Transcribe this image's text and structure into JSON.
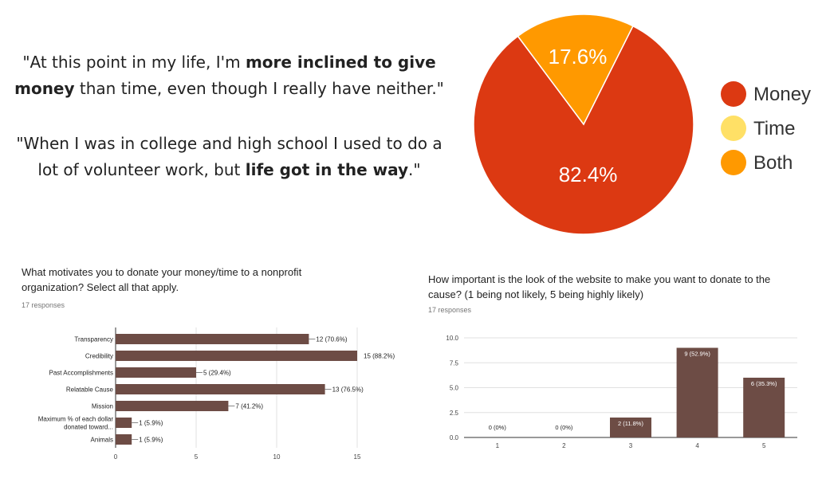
{
  "quotes": [
    {
      "parts": [
        {
          "text": "\"At this point in my life, I'm ",
          "bold": false
        },
        {
          "text": "more inclined to give money",
          "bold": true
        },
        {
          "text": " than time, even though I really have neither.\"",
          "bold": false
        }
      ]
    },
    {
      "parts": [
        {
          "text": "\"When I was in college and high school I used to do a lot of volunteer work, but ",
          "bold": false
        },
        {
          "text": "life got in the way",
          "bold": true
        },
        {
          "text": ".\"",
          "bold": false
        }
      ]
    }
  ],
  "chart_data": [
    {
      "type": "pie",
      "slices": [
        {
          "name": "Money",
          "value": 82.4,
          "label": "82.4%",
          "color": "#dc3912"
        },
        {
          "name": "Time",
          "value": 0,
          "label": "",
          "color": "#ffe066"
        },
        {
          "name": "Both",
          "value": 17.6,
          "label": "17.6%",
          "color": "#ff9900"
        }
      ],
      "legend": {
        "position": "right",
        "entries": [
          "Money",
          "Time",
          "Both"
        ]
      }
    },
    {
      "type": "bar",
      "orientation": "horizontal",
      "title": "What motivates you to donate your money/time to a nonprofit organization? Select all that apply.",
      "responses": "17 responses",
      "categories": [
        "Transparency",
        "Credibility",
        "Past Accomplishments",
        "Relatable Cause",
        "Mission",
        "Maximum % of each dollar donated toward...",
        "Animals"
      ],
      "values": [
        12,
        15,
        5,
        13,
        7,
        1,
        1
      ],
      "data_labels": [
        "12 (70.6%)",
        "15 (88.2%)",
        "5 (29.4%)",
        "13 (76.5%)",
        "7 (41.2%)",
        "1 (5.9%)",
        "1 (5.9%)"
      ],
      "xlim": [
        0,
        15
      ],
      "xticks": [
        "0",
        "5",
        "10",
        "15"
      ],
      "color": "#6d4c45"
    },
    {
      "type": "bar",
      "orientation": "vertical",
      "title": "How important is the look of the website to make you want to donate to the cause? (1 being not likely, 5 being highly likely)",
      "responses": "17 responses",
      "categories": [
        "1",
        "2",
        "3",
        "4",
        "5"
      ],
      "values": [
        0,
        0,
        2,
        9,
        6
      ],
      "data_labels": [
        "0 (0%)",
        "0 (0%)",
        "2 (11.8%)",
        "9 (52.9%)",
        "6 (35.3%)"
      ],
      "ylim": [
        0,
        10
      ],
      "yticks": [
        "0.0",
        "2.5",
        "5.0",
        "7.5",
        "10.0"
      ],
      "color": "#6d4c45"
    }
  ]
}
